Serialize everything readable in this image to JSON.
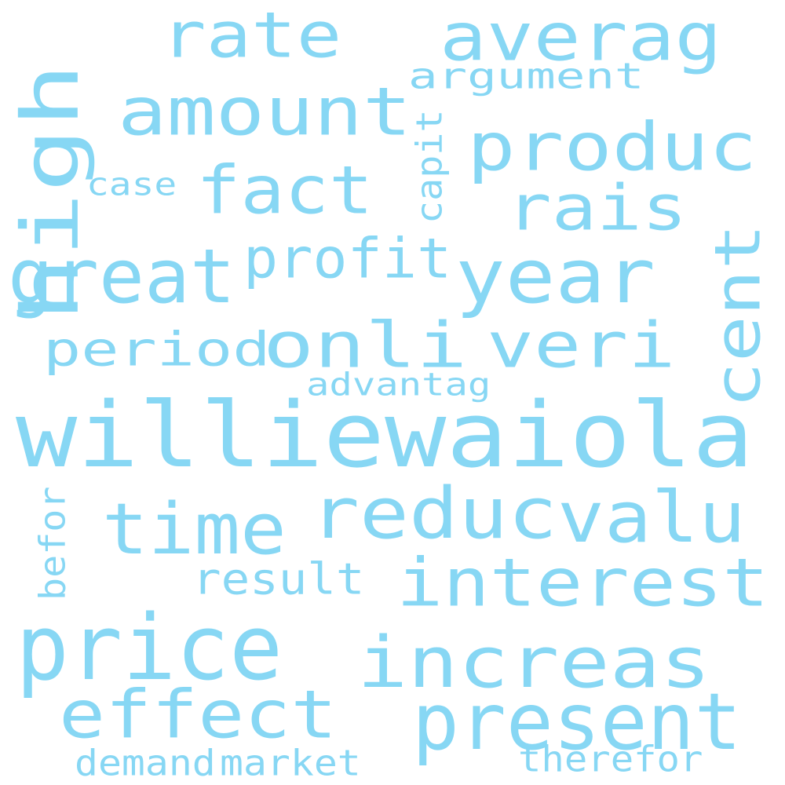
{
  "word_color": "#87d7f4",
  "background": "#ffffff",
  "words": [
    {
      "id": "williewaiola",
      "text": "williewaiola"
    },
    {
      "id": "price",
      "text": "price"
    },
    {
      "id": "increas",
      "text": "increas"
    },
    {
      "id": "interest",
      "text": "interest"
    },
    {
      "id": "present",
      "text": "present"
    },
    {
      "id": "effect",
      "text": "effect"
    },
    {
      "id": "reduc",
      "text": "reduc"
    },
    {
      "id": "valu",
      "text": "valu"
    },
    {
      "id": "time",
      "text": "time"
    },
    {
      "id": "onli",
      "text": "onli"
    },
    {
      "id": "veri",
      "text": "veri"
    },
    {
      "id": "year",
      "text": "year"
    },
    {
      "id": "great",
      "text": "great"
    },
    {
      "id": "amount",
      "text": "amount"
    },
    {
      "id": "rate",
      "text": "rate"
    },
    {
      "id": "averag",
      "text": "averag"
    },
    {
      "id": "produc",
      "text": "produc"
    },
    {
      "id": "fact",
      "text": "fact"
    },
    {
      "id": "rais",
      "text": "rais"
    },
    {
      "id": "high",
      "text": "high"
    },
    {
      "id": "cent",
      "text": "cent"
    },
    {
      "id": "profit",
      "text": "profit"
    },
    {
      "id": "period",
      "text": "period"
    },
    {
      "id": "argument",
      "text": "argument"
    },
    {
      "id": "result",
      "text": "result"
    },
    {
      "id": "advantag",
      "text": "advantag"
    },
    {
      "id": "case",
      "text": "case"
    },
    {
      "id": "capit",
      "text": "capit"
    },
    {
      "id": "befor",
      "text": "befor"
    },
    {
      "id": "demand",
      "text": "demand"
    },
    {
      "id": "market",
      "text": "market"
    },
    {
      "id": "therefor",
      "text": "therefor"
    }
  ]
}
